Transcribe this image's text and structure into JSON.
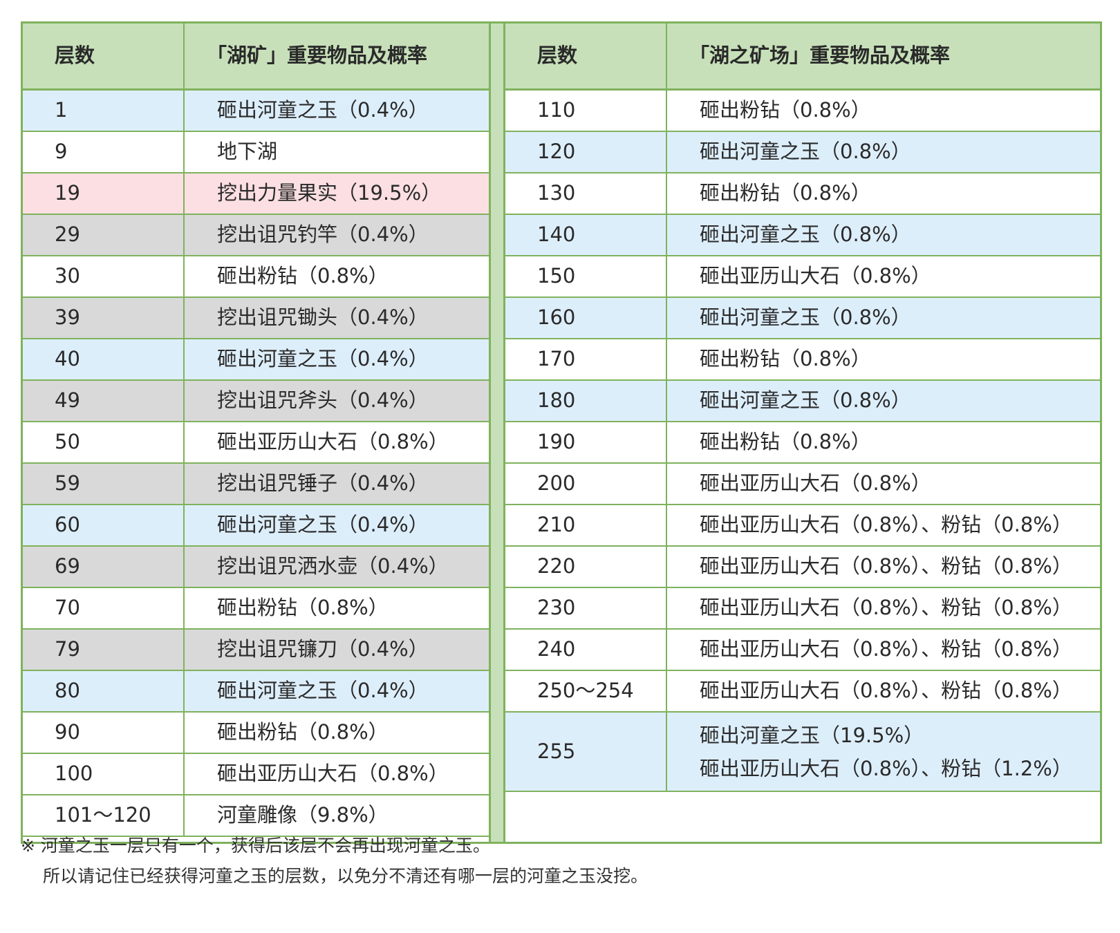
{
  "left": {
    "header": {
      "col1": "层数",
      "col2": "「湖矿」重要物品及概率"
    },
    "rows": [
      {
        "floor": "1",
        "item": "砸出河童之玉（0.4%）",
        "color": "#ddeefb"
      },
      {
        "floor": "9",
        "item": "地下湖",
        "color": "#ffffff"
      },
      {
        "floor": "19",
        "item": "挖出力量果实（19.5%）",
        "color": "#fbdfe2"
      },
      {
        "floor": "29",
        "item": "挖出诅咒钓竿（0.4%）",
        "color": "#d9d9d9"
      },
      {
        "floor": "30",
        "item": "砸出粉钻（0.8%）",
        "color": "#ffffff"
      },
      {
        "floor": "39",
        "item": "挖出诅咒锄头（0.4%）",
        "color": "#d9d9d9"
      },
      {
        "floor": "40",
        "item": "砸出河童之玉（0.4%）",
        "color": "#ddeefb"
      },
      {
        "floor": "49",
        "item": "挖出诅咒斧头（0.4%）",
        "color": "#d9d9d9"
      },
      {
        "floor": "50",
        "item": "砸出亚历山大石（0.8%）",
        "color": "#ffffff"
      },
      {
        "floor": "59",
        "item": "挖出诅咒锤子（0.4%）",
        "color": "#d9d9d9"
      },
      {
        "floor": "60",
        "item": "砸出河童之玉（0.4%）",
        "color": "#ddeefb"
      },
      {
        "floor": "69",
        "item": "挖出诅咒洒水壶（0.4%）",
        "color": "#d9d9d9"
      },
      {
        "floor": "70",
        "item": "砸出粉钻（0.8%）",
        "color": "#ffffff"
      },
      {
        "floor": "79",
        "item": "挖出诅咒镰刀（0.4%）",
        "color": "#d9d9d9"
      },
      {
        "floor": "80",
        "item": "砸出河童之玉（0.4%）",
        "color": "#ddeefb"
      },
      {
        "floor": "90",
        "item": "砸出粉钻（0.8%）",
        "color": "#ffffff"
      },
      {
        "floor": "100",
        "item": "砸出亚历山大石（0.8%）",
        "color": "#ffffff"
      },
      {
        "floor": "101～120",
        "item": "河童雕像（9.8%）",
        "color": "#ffffff"
      }
    ]
  },
  "right": {
    "header": {
      "col1": "层数",
      "col2": "「湖之矿场」重要物品及概率"
    },
    "rows": [
      {
        "floor": "110",
        "item": "砸出粉钻（0.8%）",
        "color": "#ffffff"
      },
      {
        "floor": "120",
        "item": "砸出河童之玉（0.8%）",
        "color": "#ddeefb"
      },
      {
        "floor": "130",
        "item": "砸出粉钻（0.8%）",
        "color": "#ffffff"
      },
      {
        "floor": "140",
        "item": "砸出河童之玉（0.8%）",
        "color": "#ddeefb"
      },
      {
        "floor": "150",
        "item": "砸出亚历山大石（0.8%）",
        "color": "#ffffff"
      },
      {
        "floor": "160",
        "item": "砸出河童之玉（0.8%）",
        "color": "#ddeefb"
      },
      {
        "floor": "170",
        "item": "砸出粉钻（0.8%）",
        "color": "#ffffff"
      },
      {
        "floor": "180",
        "item": "砸出河童之玉（0.8%）",
        "color": "#ddeefb"
      },
      {
        "floor": "190",
        "item": "砸出粉钻（0.8%）",
        "color": "#ffffff"
      },
      {
        "floor": "200",
        "item": "砸出亚历山大石（0.8%）",
        "color": "#ffffff"
      },
      {
        "floor": "210",
        "item": "砸出亚历山大石（0.8%）、粉钻（0.8%）",
        "color": "#ffffff"
      },
      {
        "floor": "220",
        "item": "砸出亚历山大石（0.8%）、粉钻（0.8%）",
        "color": "#ffffff"
      },
      {
        "floor": "230",
        "item": "砸出亚历山大石（0.8%）、粉钻（0.8%）",
        "color": "#ffffff"
      },
      {
        "floor": "240",
        "item": "砸出亚历山大石（0.8%）、粉钻（0.8%）",
        "color": "#ffffff"
      },
      {
        "floor": "250～254",
        "item": "砸出亚历山大石（0.8%）、粉钻（0.8%）",
        "color": "#ffffff"
      },
      {
        "floor": "255",
        "item_line1": "砸出河童之玉（19.5%）",
        "item_line2": "砸出亚历山大石（0.8%）、粉钻（1.2%）",
        "color": "#ddeefb"
      }
    ]
  },
  "notes": {
    "line1": "※ 河童之玉一层只有一个，获得后该层不会再出现河童之玉。",
    "line2": "所以请记住已经获得河童之玉的层数，以免分不清还有哪一层的河童之玉没挖。"
  },
  "colors": {
    "border": "#7fb25c",
    "header_bg": "#c7e0b9",
    "blue": "#ddeefb",
    "pink": "#fbdfe2",
    "gray": "#d9d9d9"
  }
}
